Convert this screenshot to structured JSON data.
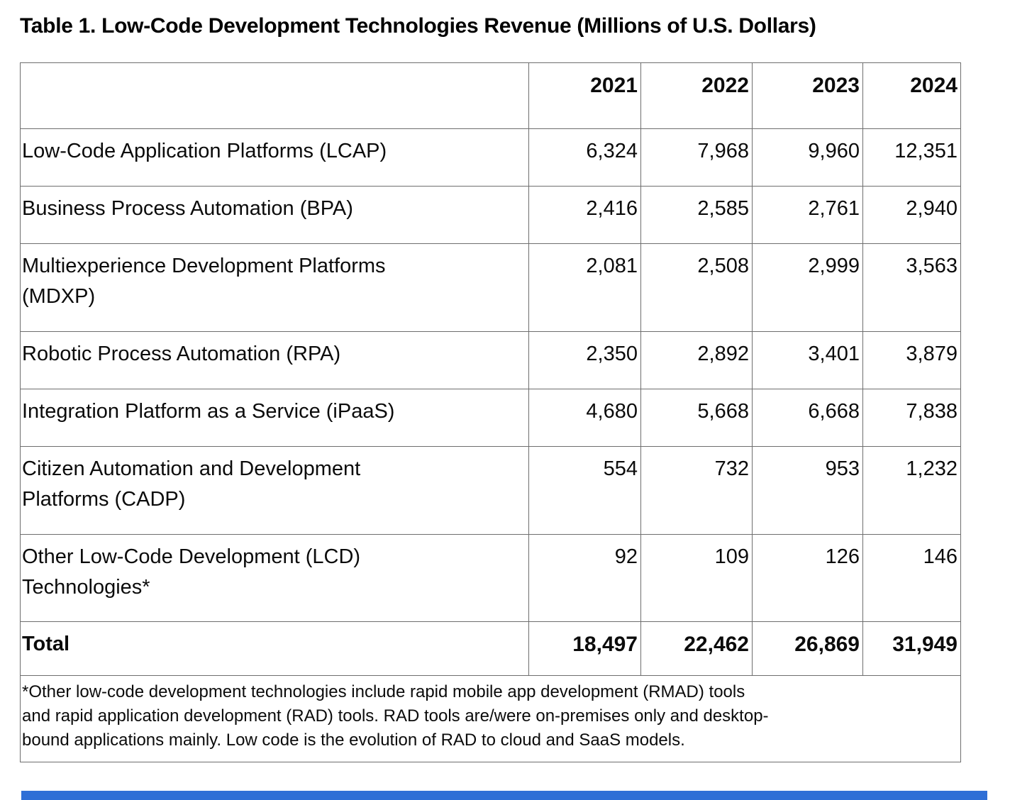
{
  "page": {
    "title": "Table 1. Low-Code Development Technologies Revenue (Millions of U.S. Dollars)"
  },
  "table": {
    "header": {
      "corner": "",
      "years": [
        "2021",
        "2022",
        "2023",
        "2024"
      ]
    },
    "rows": [
      {
        "label": "Low-Code Application Platforms (LCAP)",
        "values": [
          "6,324",
          "7,968",
          "9,960",
          "12,351"
        ]
      },
      {
        "label": "Business Process Automation (BPA)",
        "values": [
          "2,416",
          "2,585",
          "2,761",
          "2,940"
        ]
      },
      {
        "label": "Multiexperience Development Platforms\n(MDXP)",
        "values": [
          "2,081",
          "2,508",
          "2,999",
          "3,563"
        ]
      },
      {
        "label": "Robotic Process Automation (RPA)",
        "values": [
          "2,350",
          "2,892",
          "3,401",
          "3,879"
        ]
      },
      {
        "label": "Integration Platform as a Service (iPaaS)",
        "values": [
          "4,680",
          "5,668",
          "6,668",
          "7,838"
        ]
      },
      {
        "label": "Citizen Automation and Development\nPlatforms (CADP)",
        "values": [
          "554",
          "732",
          "953",
          "1,232"
        ]
      },
      {
        "label": "Other Low-Code Development (LCD)\nTechnologies*",
        "values": [
          "92",
          "109",
          "126",
          "146"
        ]
      }
    ],
    "total_row": {
      "label": "Total",
      "values": [
        "18,497",
        "22,462",
        "26,869",
        "31,949"
      ]
    },
    "footnote": "*Other low-code development technologies include rapid mobile app development (RMAD) tools\nand rapid application development (RAD) tools. RAD tools are/were on-premises only and desktop-\nbound applications mainly. Low code is the evolution of RAD to cloud and SaaS models."
  },
  "colors": {
    "border": "#6e6e6e",
    "text": "#0b0b0b",
    "accent_bar": "#2f6fd6",
    "background": "#ffffff"
  },
  "chart_data": {
    "type": "table",
    "title": "Table 1. Low-Code Development Technologies Revenue (Millions of U.S. Dollars)",
    "units": "Millions of U.S. Dollars",
    "columns": [
      "2021",
      "2022",
      "2023",
      "2024"
    ],
    "series": [
      {
        "name": "Low-Code Application Platforms (LCAP)",
        "values": [
          6324,
          7968,
          9960,
          12351
        ]
      },
      {
        "name": "Business Process Automation (BPA)",
        "values": [
          2416,
          2585,
          2761,
          2940
        ]
      },
      {
        "name": "Multiexperience Development Platforms (MDXP)",
        "values": [
          2081,
          2508,
          2999,
          3563
        ]
      },
      {
        "name": "Robotic Process Automation (RPA)",
        "values": [
          2350,
          2892,
          3401,
          3879
        ]
      },
      {
        "name": "Integration Platform as a Service (iPaaS)",
        "values": [
          4680,
          5668,
          6668,
          7838
        ]
      },
      {
        "name": "Citizen Automation and Development Platforms (CADP)",
        "values": [
          554,
          732,
          953,
          1232
        ]
      },
      {
        "name": "Other Low-Code Development (LCD) Technologies*",
        "values": [
          92,
          109,
          126,
          146
        ]
      },
      {
        "name": "Total",
        "values": [
          18497,
          22462,
          26869,
          31949
        ]
      }
    ],
    "footnote": "*Other low-code development technologies include rapid mobile app development (RMAD) tools and rapid application development (RAD) tools. RAD tools are/were on-premises only and desktop-bound applications mainly. Low code is the evolution of RAD to cloud and SaaS models."
  }
}
